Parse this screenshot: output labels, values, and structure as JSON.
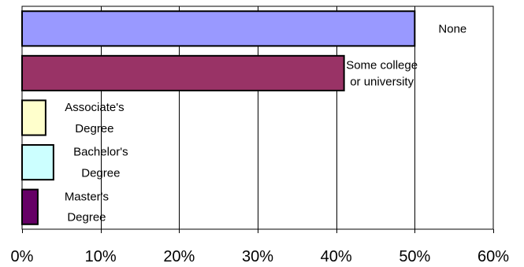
{
  "chart_data": {
    "type": "bar",
    "orientation": "horizontal",
    "categories": [
      "None",
      "Some college or university",
      "Associate's Degree",
      "Bachelor's Degree",
      "Master's Degree"
    ],
    "category_label_lines": [
      [
        "None"
      ],
      [
        "Some college",
        "or university"
      ],
      [
        "Associate's",
        "Degree"
      ],
      [
        "Bachelor's",
        "Degree"
      ],
      [
        "Master's",
        "Degree"
      ]
    ],
    "values": [
      50,
      41,
      3,
      4,
      2
    ],
    "value_unit": "%",
    "xlim": [
      0,
      60
    ],
    "xticks": [
      0,
      10,
      20,
      30,
      40,
      50,
      60
    ],
    "xtick_labels": [
      "0%",
      "10%",
      "20%",
      "30%",
      "40%",
      "50%",
      "60%"
    ],
    "grid": "vertical",
    "legend": "none",
    "colors": [
      "#9999ff",
      "#993366",
      "#ffffcc",
      "#ccffff",
      "#660066"
    ],
    "title": "",
    "xlabel": "",
    "ylabel": ""
  }
}
